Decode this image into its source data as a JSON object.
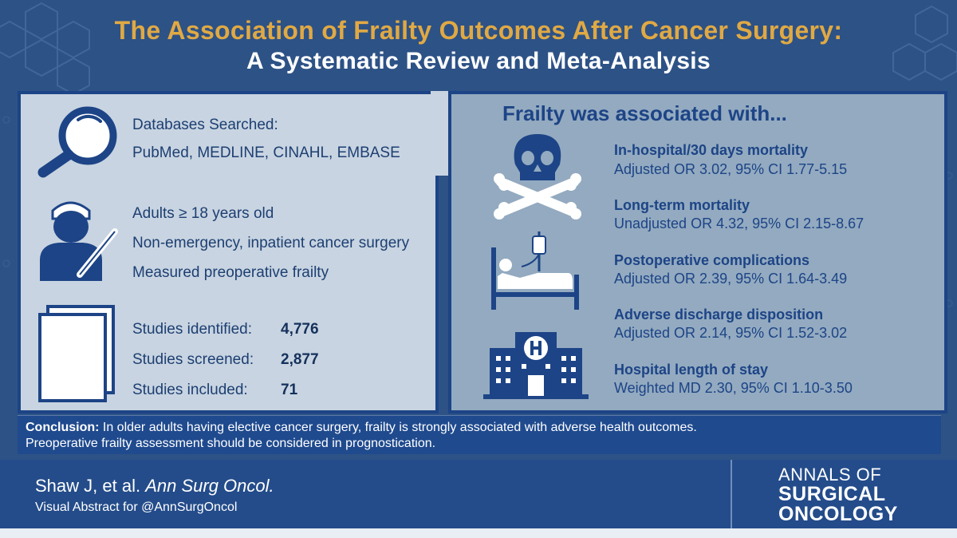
{
  "title": {
    "line1": "The Association of Frailty Outcomes After Cancer Surgery:",
    "line2": "A Systematic Review and Meta-Analysis"
  },
  "databases": {
    "label": "Databases Searched:",
    "list": "PubMed, MEDLINE, CINAHL, EMBASE",
    "icon": "magnifier-icon"
  },
  "criteria": {
    "icon": "surgeon-icon",
    "items": [
      "Adults ≥ 18 years old",
      "Non-emergency, inpatient cancer surgery",
      "Measured preoperative frailty"
    ]
  },
  "studies": {
    "icon": "documents-icon",
    "rows": [
      {
        "label": "Studies identified:",
        "value": "4,776"
      },
      {
        "label": "Studies screened:",
        "value": "2,877"
      },
      {
        "label": "Studies included:",
        "value": "71"
      }
    ]
  },
  "outcomes": {
    "heading": "Frailty was associated with...",
    "items": [
      {
        "title": "In-hospital/30 days mortality",
        "stat": "Adjusted OR 3.02, 95% CI 1.77-5.15"
      },
      {
        "title": "Long-term mortality",
        "stat": "Unadjusted OR 4.32, 95% CI 2.15-8.67"
      },
      {
        "title": "Postoperative complications",
        "stat": "Adjusted OR 2.39, 95% CI 1.64-3.49"
      },
      {
        "title": "Adverse discharge disposition",
        "stat": "Adjusted OR 2.14, 95% CI 1.52-3.02"
      },
      {
        "title": "Hospital length of stay",
        "stat": "Weighted MD 2.30, 95% CI 1.10-3.50"
      }
    ],
    "icons": [
      "skull-crossbones-icon",
      "hospital-bed-icon",
      "hospital-building-icon"
    ]
  },
  "conclusion": {
    "label": "Conclusion:",
    "text": "In older adults having elective cancer surgery, frailty is strongly associated with adverse health outcomes.",
    "text2": "Preoperative frailty assessment should be considered in prognostication."
  },
  "footer": {
    "citation_authors": "Shaw J, et al.",
    "citation_journal": "Ann Surg Oncol.",
    "visual_abstract": "Visual Abstract for @AnnSurgOncol",
    "logo_line1": "ANNALS OF",
    "logo_line2": "SURGICAL",
    "logo_line3": "ONCOLOGY"
  },
  "colors": {
    "background": "#2d5286",
    "accent_gold": "#e0a944",
    "panel_left": "#c8d4e1",
    "panel_right": "#93aac0",
    "navy": "#1d4486"
  }
}
